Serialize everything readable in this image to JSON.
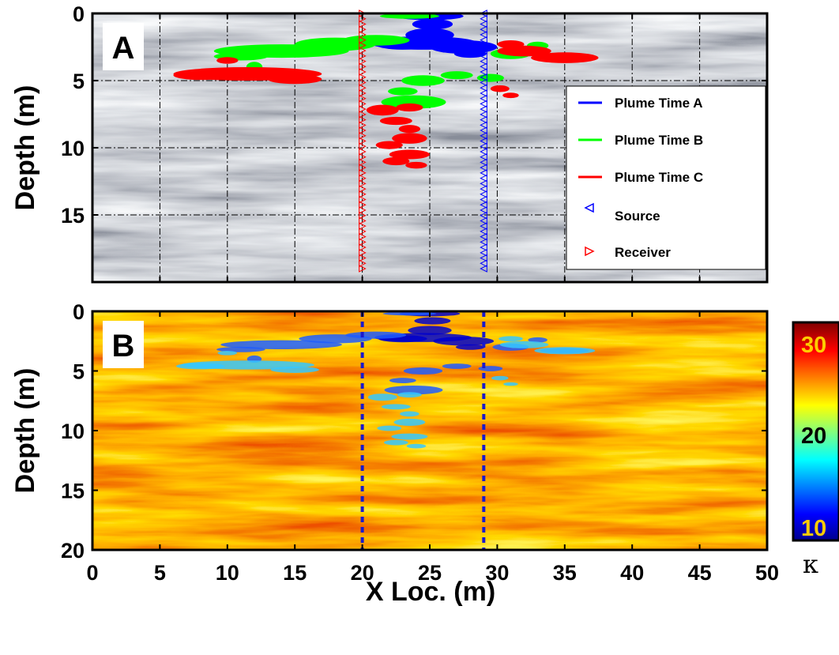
{
  "chart_data": [
    {
      "panel": "A",
      "type": "heatmap",
      "ylabel": "Depth (m)",
      "xlim": [
        0,
        50
      ],
      "ylim": [
        0,
        20
      ],
      "y_reversed": true,
      "x_ticks": [
        0,
        5,
        10,
        15,
        20,
        25,
        30,
        35,
        40,
        45,
        50
      ],
      "y_ticks": [
        0,
        5,
        10,
        15
      ],
      "grid": true,
      "colormap": "gray",
      "legend_position": "right",
      "series": [
        {
          "name": "Plume Time A",
          "color": "#0000ff",
          "blobs": [
            [
              25,
              0.2,
              2.5,
              0.3
            ],
            [
              25.2,
              0.8,
              1.5,
              0.4
            ],
            [
              25,
              1.6,
              1.8,
              0.5
            ],
            [
              24.5,
              2.2,
              4,
              0.5
            ],
            [
              27.5,
              2.5,
              2.5,
              0.5
            ],
            [
              28,
              3.0,
              1.2,
              0.3
            ],
            [
              23,
              2.3,
              2,
              0.4
            ]
          ]
        },
        {
          "name": "Plume Time B",
          "color": "#00ff00",
          "blobs": [
            [
              23.5,
              0.2,
              2.2,
              0.2
            ],
            [
              21,
              2.0,
              2.5,
              0.4
            ],
            [
              18,
              2.3,
              3,
              0.5
            ],
            [
              14,
              2.8,
              5,
              0.5
            ],
            [
              11,
              3.2,
              2,
              0.3
            ],
            [
              12,
              4.0,
              0.6,
              0.4
            ],
            [
              24.5,
              5.0,
              1.6,
              0.4
            ],
            [
              27,
              4.6,
              1.2,
              0.3
            ],
            [
              29.5,
              4.8,
              1.0,
              0.3
            ],
            [
              23,
              5.8,
              1.1,
              0.3
            ],
            [
              23.8,
              6.6,
              2.4,
              0.5
            ],
            [
              31,
              3.0,
              1.5,
              0.4
            ],
            [
              35,
              3.3,
              2.0,
              0.3
            ],
            [
              33,
              2.4,
              0.8,
              0.3
            ]
          ]
        },
        {
          "name": "Plume Time C",
          "color": "#ff0000",
          "blobs": [
            [
              11.5,
              4.5,
              5.5,
              0.5
            ],
            [
              15,
              4.9,
              2.0,
              0.35
            ],
            [
              8,
              4.6,
              2.0,
              0.35
            ],
            [
              10,
              3.5,
              0.8,
              0.25
            ],
            [
              32,
              2.8,
              2.0,
              0.4
            ],
            [
              35,
              3.3,
              2.5,
              0.4
            ],
            [
              31,
              2.3,
              1.0,
              0.3
            ],
            [
              30.2,
              5.6,
              0.7,
              0.25
            ],
            [
              31,
              6.1,
              0.6,
              0.2
            ],
            [
              21.5,
              7.2,
              1.2,
              0.4
            ],
            [
              23.5,
              7.0,
              1.0,
              0.3
            ],
            [
              22.5,
              8.0,
              1.2,
              0.3
            ],
            [
              23.5,
              8.6,
              0.8,
              0.3
            ],
            [
              23.5,
              9.3,
              1.3,
              0.4
            ],
            [
              22.0,
              9.8,
              1.0,
              0.3
            ],
            [
              23.5,
              10.5,
              1.5,
              0.35
            ],
            [
              22.5,
              11.0,
              1.0,
              0.3
            ],
            [
              24.0,
              11.3,
              0.8,
              0.25
            ]
          ]
        },
        {
          "name": "Source",
          "marker": "triangle-left",
          "color": "#0000ff",
          "x": 29,
          "y_range": [
            0,
            19
          ]
        },
        {
          "name": "Receiver",
          "marker": "triangle-right",
          "color": "#ff0000",
          "x": 20,
          "y_range": [
            0,
            19
          ]
        }
      ]
    },
    {
      "panel": "B",
      "type": "heatmap",
      "xlabel": "X Loc. (m)",
      "ylabel": "Depth (m)",
      "xlim": [
        0,
        50
      ],
      "ylim": [
        0,
        20
      ],
      "y_reversed": true,
      "x_ticks": [
        0,
        5,
        10,
        15,
        20,
        25,
        30,
        35,
        40,
        45,
        50
      ],
      "y_ticks": [
        0,
        5,
        10,
        15,
        20
      ],
      "colormap": "jet",
      "vertical_lines": [
        20,
        29
      ],
      "colorbar": {
        "label": "κ",
        "ticks": [
          "30",
          "20",
          "10"
        ],
        "tick_color": "#ffcc00",
        "range": [
          10,
          30
        ]
      }
    }
  ]
}
